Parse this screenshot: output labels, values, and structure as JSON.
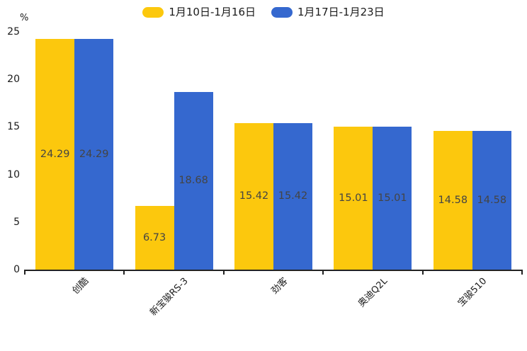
{
  "chart_data": {
    "type": "bar",
    "title": "",
    "categories": [
      "创酷",
      "新宝骏RS-3",
      "劲客",
      "奥迪Q2L",
      "宝骏510"
    ],
    "series": [
      {
        "name": "1月10日-1月16日",
        "color": "#FCC80D",
        "values": [
          24.29,
          6.73,
          15.42,
          15.01,
          14.58
        ]
      },
      {
        "name": "1月17日-1月23日",
        "color": "#3568CF",
        "values": [
          24.29,
          18.68,
          15.42,
          15.01,
          14.58
        ]
      }
    ],
    "xlabel": "",
    "ylabel": "%",
    "yticks": [
      0,
      5,
      10,
      15,
      20,
      25
    ],
    "ylim": [
      0,
      25
    ],
    "grid": false,
    "legend_position": "top",
    "value_label_decimals": 2,
    "style": {
      "axis_color": "#222222",
      "value_label_color": "#444444",
      "tick_label_color": "#1a1a1a",
      "background": "#ffffff"
    }
  }
}
